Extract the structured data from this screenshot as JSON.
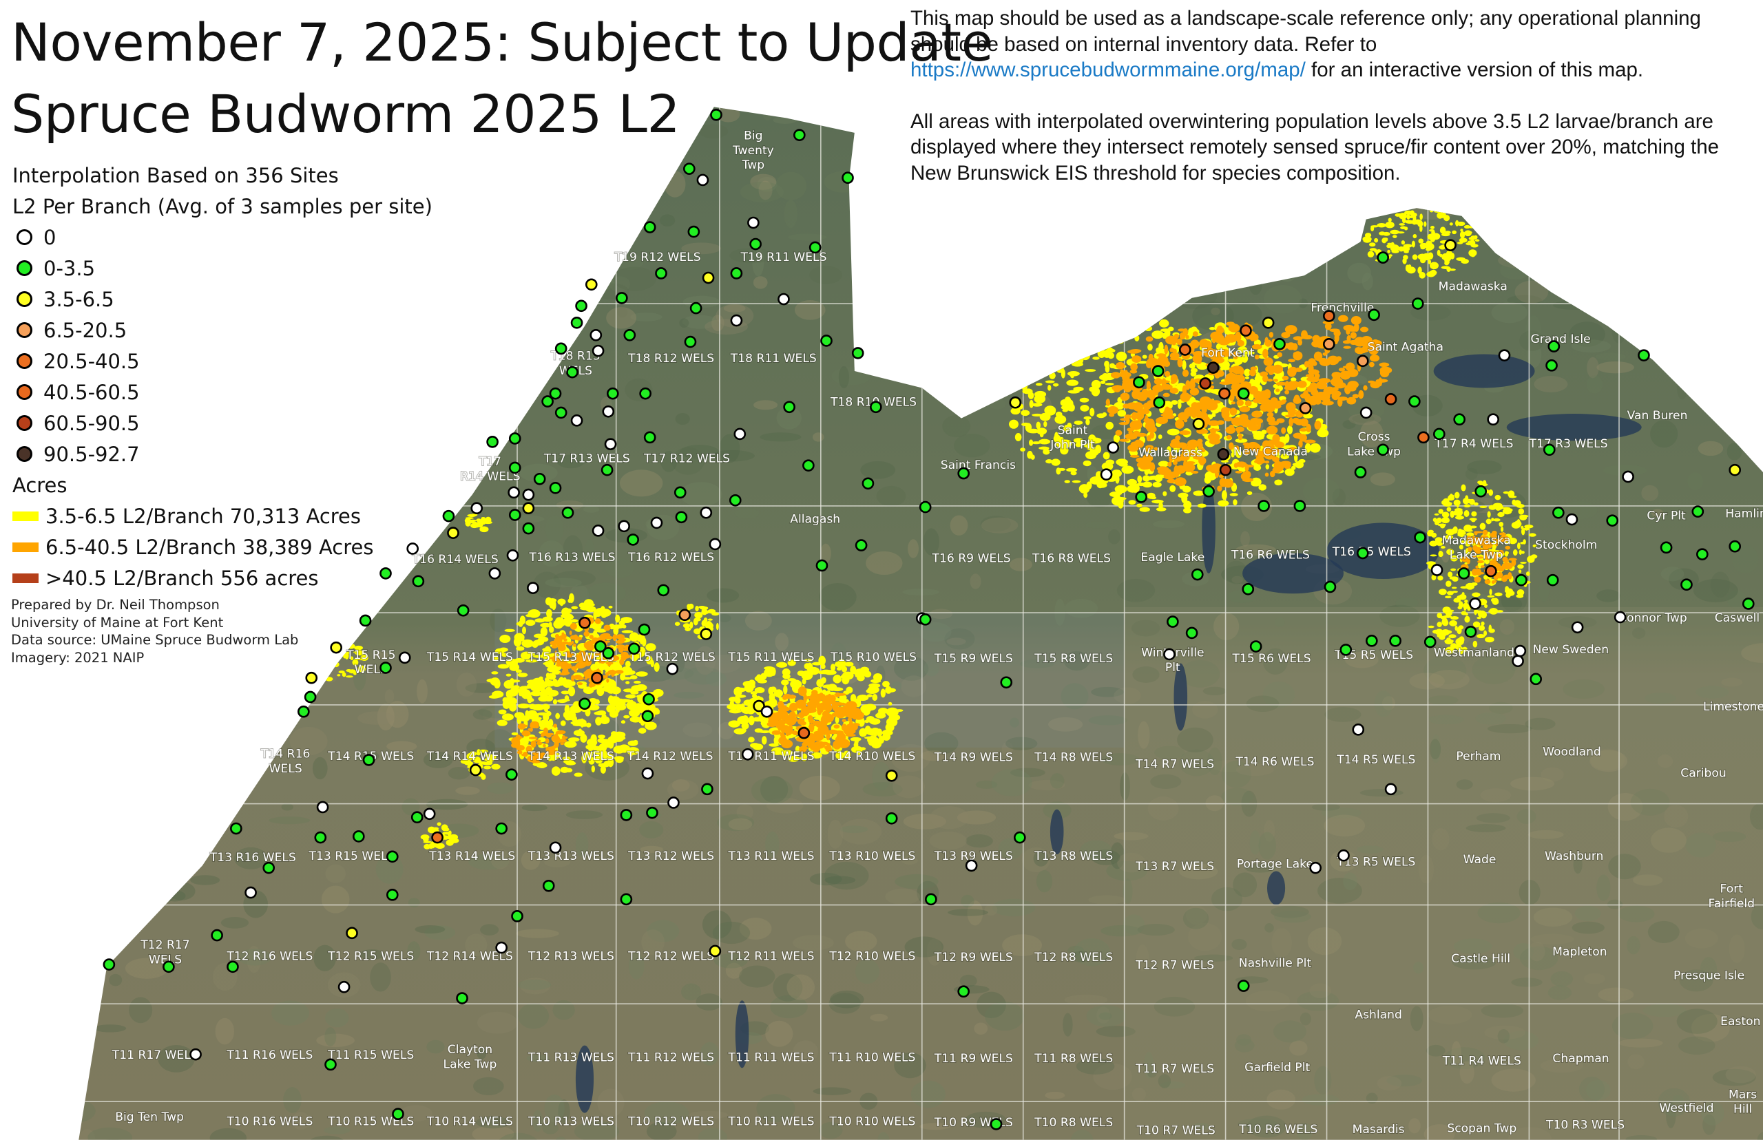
{
  "title": {
    "line1": "November 7, 2025: Subject to Update",
    "line2": "Spruce Budworm 2025 L2"
  },
  "note": {
    "p1_before_link": "This map should be used as a landscape-scale reference only; any operational planning should be based on internal inventory data. Refer to ",
    "p1_link": "https://www.sprucebudwormmaine.org/map/",
    "p1_after_link": " for an interactive version of this map.",
    "p2": "All areas with interpolated overwintering population levels above 3.5 L2 larvae/branch are displayed where they intersect remotely sensed spruce/fir content over 20%, matching the New Brunswick EIS threshold for species composition."
  },
  "legend": {
    "heading1": "Interpolation Based on 356 Sites",
    "heading2": "L2 Per Branch (Avg. of 3 samples per site)",
    "points": [
      {
        "label": "0",
        "color": "#ffffff"
      },
      {
        "label": "0-3.5",
        "color": "#22ee22"
      },
      {
        "label": "3.5-6.5",
        "color": "#ffff22"
      },
      {
        "label": "6.5-20.5",
        "color": "#f5a05a"
      },
      {
        "label": "20.5-40.5",
        "color": "#ec6f20"
      },
      {
        "label": "40.5-60.5",
        "color": "#e8691e"
      },
      {
        "label": "60.5-90.5",
        "color": "#b8401a"
      },
      {
        "label": "90.5-92.7",
        "color": "#4a3328"
      }
    ],
    "acres_heading": "Acres",
    "areas": [
      {
        "label": "3.5-6.5 L2/Branch 70,313 Acres",
        "color": "#ffff00"
      },
      {
        "label": "6.5-40.5 L2/Branch 38,389 Acres",
        "color": "#ffa500"
      },
      {
        "label": ">40.5 L2/Branch 556 acres",
        "color": "#b5401a"
      }
    ]
  },
  "credits": {
    "line1": "Prepared by Dr. Neil Thompson",
    "line2": "University of Maine at Fort Kent",
    "line3": "Data source: UMaine Spruce Budworm Lab",
    "line4": "Imagery: 2021 NAIP"
  },
  "map": {
    "labels": [
      [
        "Big",
        "Twenty",
        "Twp"
      ],
      [
        "T19 R12 WELS"
      ],
      [
        "T19 R11 WELS"
      ],
      [
        "T18 R13",
        "WELS"
      ],
      [
        "T18 R12 WELS"
      ],
      [
        "T18 R11 WELS"
      ],
      [
        "T18 R10 WELS"
      ],
      [
        "T17",
        "R14 WELS"
      ],
      [
        "T17 R13 WELS"
      ],
      [
        "T17 R12 WELS"
      ],
      [
        "Saint Francis"
      ],
      [
        "Allagash"
      ],
      [
        "Saint",
        "John Plt"
      ],
      [
        "Wallagrass"
      ],
      [
        "New Canada"
      ],
      [
        "Fort Kent"
      ],
      [
        "Frenchville"
      ],
      [
        "Saint Agatha"
      ],
      [
        "Madawaska"
      ],
      [
        "Grand Isle"
      ],
      [
        "Cross",
        "Lake Twp"
      ],
      [
        "T17 R4 WELS"
      ],
      [
        "T17 R3 WELS"
      ],
      [
        "Van Buren"
      ],
      [
        "Hamlin"
      ],
      [
        "Cyr Plt"
      ],
      [
        "T16 R14 WELS"
      ],
      [
        "T16 R13 WELS"
      ],
      [
        "T16 R12 WELS"
      ],
      [
        "T16 R9 WELS"
      ],
      [
        "T16 R8 WELS"
      ],
      [
        "Eagle Lake"
      ],
      [
        "T16 R6 WELS"
      ],
      [
        "T16 R5 WELS"
      ],
      [
        "Madawaska",
        "Lake Twp"
      ],
      [
        "Stockholm"
      ],
      [
        "Connor Twp"
      ],
      [
        "Caswell"
      ],
      [
        "T15 R15",
        "WELS"
      ],
      [
        "T15 R14 WELS"
      ],
      [
        "T15 R13 WELS"
      ],
      [
        "T15 R12 WELS"
      ],
      [
        "T15 R11 WELS"
      ],
      [
        "T15 R10 WELS"
      ],
      [
        "T15 R9 WELS"
      ],
      [
        "T15 R8 WELS"
      ],
      [
        "Winterville",
        "Plt"
      ],
      [
        "T15 R6 WELS"
      ],
      [
        "T15 R5 WELS"
      ],
      [
        "Westmanland"
      ],
      [
        "New Sweden"
      ],
      [
        "Limestone"
      ],
      [
        "T14 R16",
        "WELS"
      ],
      [
        "T14 R15 WELS"
      ],
      [
        "T14 R14 WELS"
      ],
      [
        "T14 R13 WELS"
      ],
      [
        "T14 R12 WELS"
      ],
      [
        "T14 R11 WELS"
      ],
      [
        "T14 R10 WELS"
      ],
      [
        "T14 R9 WELS"
      ],
      [
        "T14 R8 WELS"
      ],
      [
        "T14 R7 WELS"
      ],
      [
        "T14 R6 WELS"
      ],
      [
        "T14 R5 WELS"
      ],
      [
        "Perham"
      ],
      [
        "Woodland"
      ],
      [
        "Caribou"
      ],
      [
        "T13 R16 WELS"
      ],
      [
        "T13 R15 WELS"
      ],
      [
        "T13 R14 WELS"
      ],
      [
        "T13 R13 WELS"
      ],
      [
        "T13 R12 WELS"
      ],
      [
        "T13 R11 WELS"
      ],
      [
        "T13 R10 WELS"
      ],
      [
        "T13 R9 WELS"
      ],
      [
        "T13 R8 WELS"
      ],
      [
        "T13 R7 WELS"
      ],
      [
        "Portage Lake"
      ],
      [
        "T13 R5 WELS"
      ],
      [
        "Wade"
      ],
      [
        "Washburn"
      ],
      [
        "Fort",
        "Fairfield"
      ],
      [
        "T12 R17",
        "WELS"
      ],
      [
        "T12 R16 WELS"
      ],
      [
        "T12 R15 WELS"
      ],
      [
        "T12 R14 WELS"
      ],
      [
        "T12 R13 WELS"
      ],
      [
        "T12 R12 WELS"
      ],
      [
        "T12 R11 WELS"
      ],
      [
        "T12 R10 WELS"
      ],
      [
        "T12 R9 WELS"
      ],
      [
        "T12 R8 WELS"
      ],
      [
        "T12 R7 WELS"
      ],
      [
        "Nashville Plt"
      ],
      [
        "Castle Hill"
      ],
      [
        "Mapleton"
      ],
      [
        "Presque Isle"
      ],
      [
        "Ashland"
      ],
      [
        "Easton"
      ],
      [
        "T11 R17 WELS"
      ],
      [
        "T11 R16 WELS"
      ],
      [
        "T11 R15 WELS"
      ],
      [
        "Clayton",
        "Lake Twp"
      ],
      [
        "T11 R13 WELS"
      ],
      [
        "T11 R12 WELS"
      ],
      [
        "T11 R11 WELS"
      ],
      [
        "T11 R10 WELS"
      ],
      [
        "T11 R9 WELS"
      ],
      [
        "T11 R8 WELS"
      ],
      [
        "T11 R7 WELS"
      ],
      [
        "Garfield Plt"
      ],
      [
        "T11 R4 WELS"
      ],
      [
        "Chapman"
      ],
      [
        "Westfield"
      ],
      [
        "Mars",
        "Hill"
      ],
      [
        "Big Ten Twp"
      ],
      [
        "T10 R16 WELS"
      ],
      [
        "T10 R15 WELS"
      ],
      [
        "T10 R14 WELS"
      ],
      [
        "T10 R13 WELS"
      ],
      [
        "T10 R12 WELS"
      ],
      [
        "T10 R11 WELS"
      ],
      [
        "T10 R10 WELS"
      ],
      [
        "T10 R9 WELS"
      ],
      [
        "T10 R8 WELS"
      ],
      [
        "T10 R7 WELS"
      ],
      [
        "T10 R6 WELS"
      ],
      [
        "Masardis"
      ],
      [
        "Scopan Twp"
      ],
      [
        "T10 R3 WELS"
      ]
    ]
  }
}
